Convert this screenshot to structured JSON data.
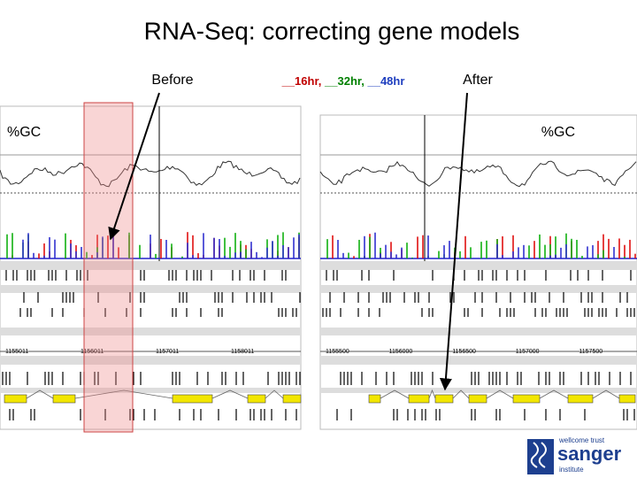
{
  "title": "RNA-Seq: correcting gene models",
  "labels": {
    "before": "Before",
    "timepoints": [
      "__16hr,",
      "__32hr,",
      "__48hr"
    ],
    "after": "After"
  },
  "left_panel": {
    "gc_label": "%GC",
    "ruler": [
      "1155011",
      "1156011",
      "1157011",
      "1158011"
    ]
  },
  "right_panel": {
    "gc_label": "%GC",
    "ruler": [
      "1155500",
      "1156000",
      "1156500",
      "1157000",
      "1157500"
    ]
  },
  "logo": {
    "line1": "wellcome trust",
    "line2": "sanger",
    "line3": "institute"
  }
}
